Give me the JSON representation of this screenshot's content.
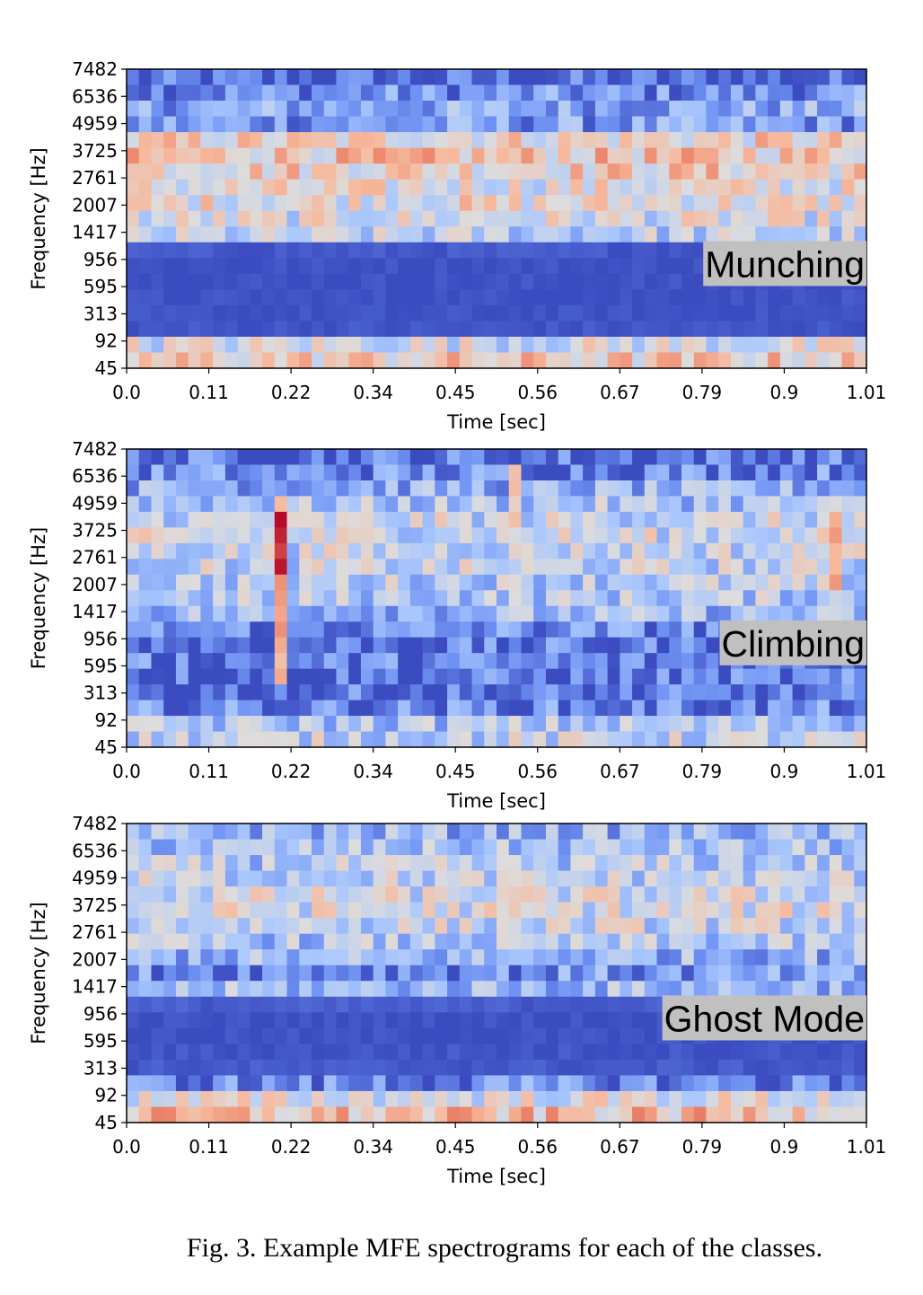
{
  "figure": {
    "caption": "Fig. 3.  Example MFE spectrograms for each of the classes."
  },
  "colors": {
    "colormap": [
      "#3b4cc0",
      "#6f92f3",
      "#aac7fd",
      "#dddcdc",
      "#f7b89c",
      "#e7745b",
      "#b40426"
    ],
    "label_box": "#c0c0c0"
  },
  "chart_data": [
    {
      "type": "heatmap",
      "name": "munching",
      "label": "Munching",
      "xlabel": "Time [sec]",
      "ylabel": "Frequency [Hz]",
      "x_ticks": [
        "0.0",
        "0.11",
        "0.22",
        "0.34",
        "0.45",
        "0.56",
        "0.67",
        "0.79",
        "0.9",
        "1.01"
      ],
      "y_ticks": [
        "7482",
        "6536",
        "4959",
        "3725",
        "2761",
        "2007",
        "1417",
        "956",
        "595",
        "313",
        "92",
        "45"
      ],
      "xlim": [
        0.0,
        1.01
      ],
      "colormap": "coolwarm",
      "profile": [
        0.06,
        0.16,
        0.24,
        0.2,
        0.55,
        0.6,
        0.58,
        0.5,
        0.52,
        0.46,
        0.38,
        0.03,
        0.01,
        0.01,
        0.01,
        0.01,
        0.02,
        0.46,
        0.58
      ]
    },
    {
      "type": "heatmap",
      "name": "climbing",
      "label": "Climbing",
      "xlabel": "Time [sec]",
      "ylabel": "Frequency [Hz]",
      "x_ticks": [
        "0.0",
        "0.11",
        "0.22",
        "0.34",
        "0.45",
        "0.56",
        "0.67",
        "0.79",
        "0.9",
        "1.01"
      ],
      "y_ticks": [
        "7482",
        "6536",
        "4959",
        "3725",
        "2761",
        "2007",
        "1417",
        "956",
        "595",
        "313",
        "92",
        "45"
      ],
      "xlim": [
        0.0,
        1.01
      ],
      "colormap": "coolwarm",
      "profile": [
        0.1,
        0.16,
        0.26,
        0.34,
        0.42,
        0.44,
        0.42,
        0.4,
        0.38,
        0.36,
        0.3,
        0.16,
        0.1,
        0.12,
        0.1,
        0.08,
        0.14,
        0.34,
        0.4
      ]
    },
    {
      "type": "heatmap",
      "name": "ghost-mode",
      "label": "Ghost Mode",
      "xlabel": "Time [sec]",
      "ylabel": "Frequency [Hz]",
      "x_ticks": [
        "0.0",
        "0.11",
        "0.22",
        "0.34",
        "0.45",
        "0.56",
        "0.67",
        "0.79",
        "0.9",
        "1.01"
      ],
      "y_ticks": [
        "7482",
        "6536",
        "4959",
        "3725",
        "2761",
        "2007",
        "1417",
        "956",
        "595",
        "313",
        "92",
        "45"
      ],
      "xlim": [
        0.0,
        1.01
      ],
      "colormap": "coolwarm",
      "profile": [
        0.28,
        0.32,
        0.36,
        0.4,
        0.44,
        0.46,
        0.42,
        0.34,
        0.28,
        0.18,
        0.3,
        0.04,
        0.01,
        0.01,
        0.02,
        0.03,
        0.14,
        0.48,
        0.62
      ]
    }
  ]
}
